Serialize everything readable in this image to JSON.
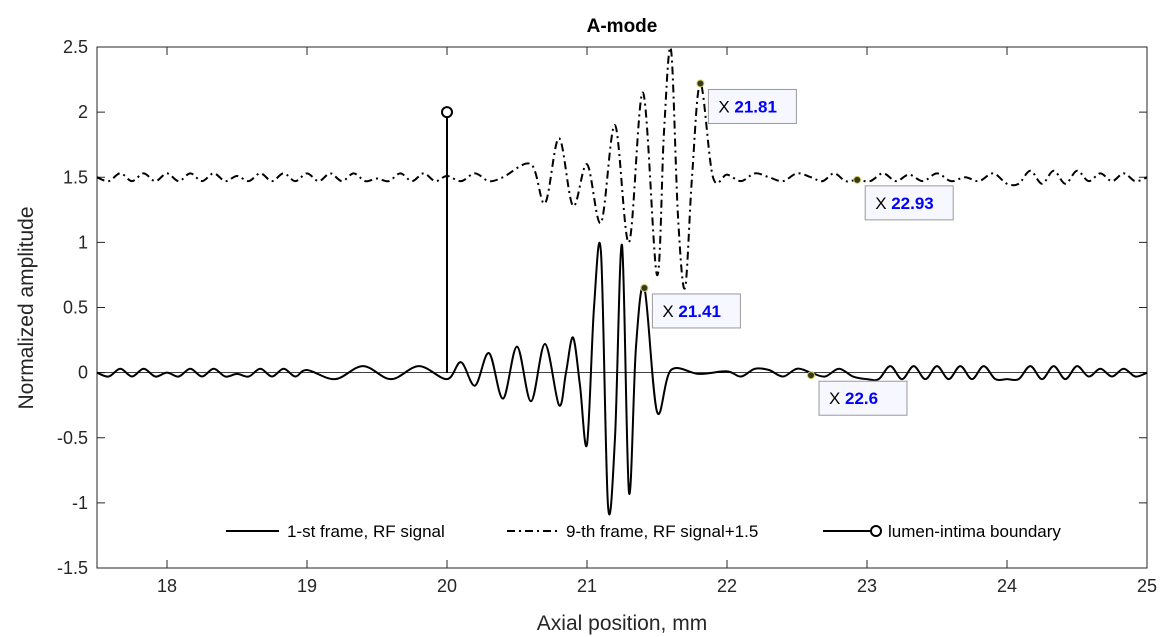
{
  "chart_data": {
    "type": "line",
    "title": "A-mode",
    "xlabel": "Axial position, mm",
    "ylabel": "Normalized amplitude",
    "xlim": [
      17.5,
      25
    ],
    "ylim": [
      -1.5,
      2.5
    ],
    "xticks": [
      "18",
      "19",
      "20",
      "21",
      "22",
      "23",
      "24",
      "25"
    ],
    "yticks": [
      "-1.5",
      "-1",
      "-0.5",
      "0",
      "0.5",
      "1",
      "1.5",
      "2",
      "2.5"
    ],
    "grid": false,
    "legend_position": "bottom",
    "series": [
      {
        "name": "1-st frame, RF signal",
        "style": "solid",
        "x": [
          17.5,
          18.0,
          18.5,
          19.0,
          19.2,
          19.4,
          19.6,
          19.8,
          20.0,
          20.1,
          20.2,
          20.3,
          20.4,
          20.5,
          20.6,
          20.7,
          20.8,
          20.85,
          20.9,
          20.95,
          21.0,
          21.05,
          21.1,
          21.15,
          21.2,
          21.25,
          21.3,
          21.35,
          21.41,
          21.5,
          21.6,
          21.8,
          22.0,
          22.3,
          22.6,
          23.0,
          23.5,
          24.0,
          24.5,
          25.0
        ],
        "y": [
          0.0,
          0.0,
          -0.01,
          0.02,
          -0.05,
          0.05,
          -0.05,
          0.05,
          -0.05,
          0.08,
          -0.1,
          0.15,
          -0.2,
          0.2,
          -0.22,
          0.22,
          -0.25,
          0.0,
          0.27,
          -0.1,
          -0.55,
          0.5,
          0.92,
          -1.02,
          -0.5,
          0.98,
          -0.92,
          0.2,
          0.65,
          -0.3,
          0.02,
          -0.01,
          0.01,
          0.02,
          0.0,
          -0.05,
          0.05,
          -0.05,
          0.05,
          0.0
        ]
      },
      {
        "name": "9-th frame, RF signal+1.5",
        "style": "dash-dot",
        "x": [
          17.5,
          18.5,
          19.5,
          20.0,
          20.4,
          20.6,
          20.7,
          20.8,
          20.9,
          21.0,
          21.1,
          21.2,
          21.3,
          21.4,
          21.5,
          21.55,
          21.6,
          21.65,
          21.7,
          21.75,
          21.81,
          21.9,
          22.0,
          22.3,
          22.6,
          22.93,
          23.3,
          23.7,
          24.0,
          24.5,
          25.0
        ],
        "y": [
          1.5,
          1.51,
          1.49,
          1.51,
          1.5,
          1.6,
          1.3,
          1.8,
          1.28,
          1.6,
          1.15,
          1.9,
          1.0,
          2.15,
          0.75,
          1.85,
          2.48,
          1.2,
          0.65,
          1.5,
          2.22,
          1.5,
          1.52,
          1.5,
          1.5,
          1.48,
          1.52,
          1.5,
          1.45,
          1.55,
          1.5
        ]
      },
      {
        "name": "lumen-intima boundary",
        "style": "stem",
        "x": [
          20.0
        ],
        "y": [
          2.0
        ]
      }
    ],
    "data_tips": [
      {
        "prefix": "X",
        "value": "21.81",
        "x": 21.81,
        "y": 2.22
      },
      {
        "prefix": "X",
        "value": "22.93",
        "x": 22.93,
        "y": 1.48
      },
      {
        "prefix": "X",
        "value": "21.41",
        "x": 21.41,
        "y": 0.65
      },
      {
        "prefix": "X",
        "value": "22.6",
        "x": 22.6,
        "y": -0.02
      }
    ]
  }
}
